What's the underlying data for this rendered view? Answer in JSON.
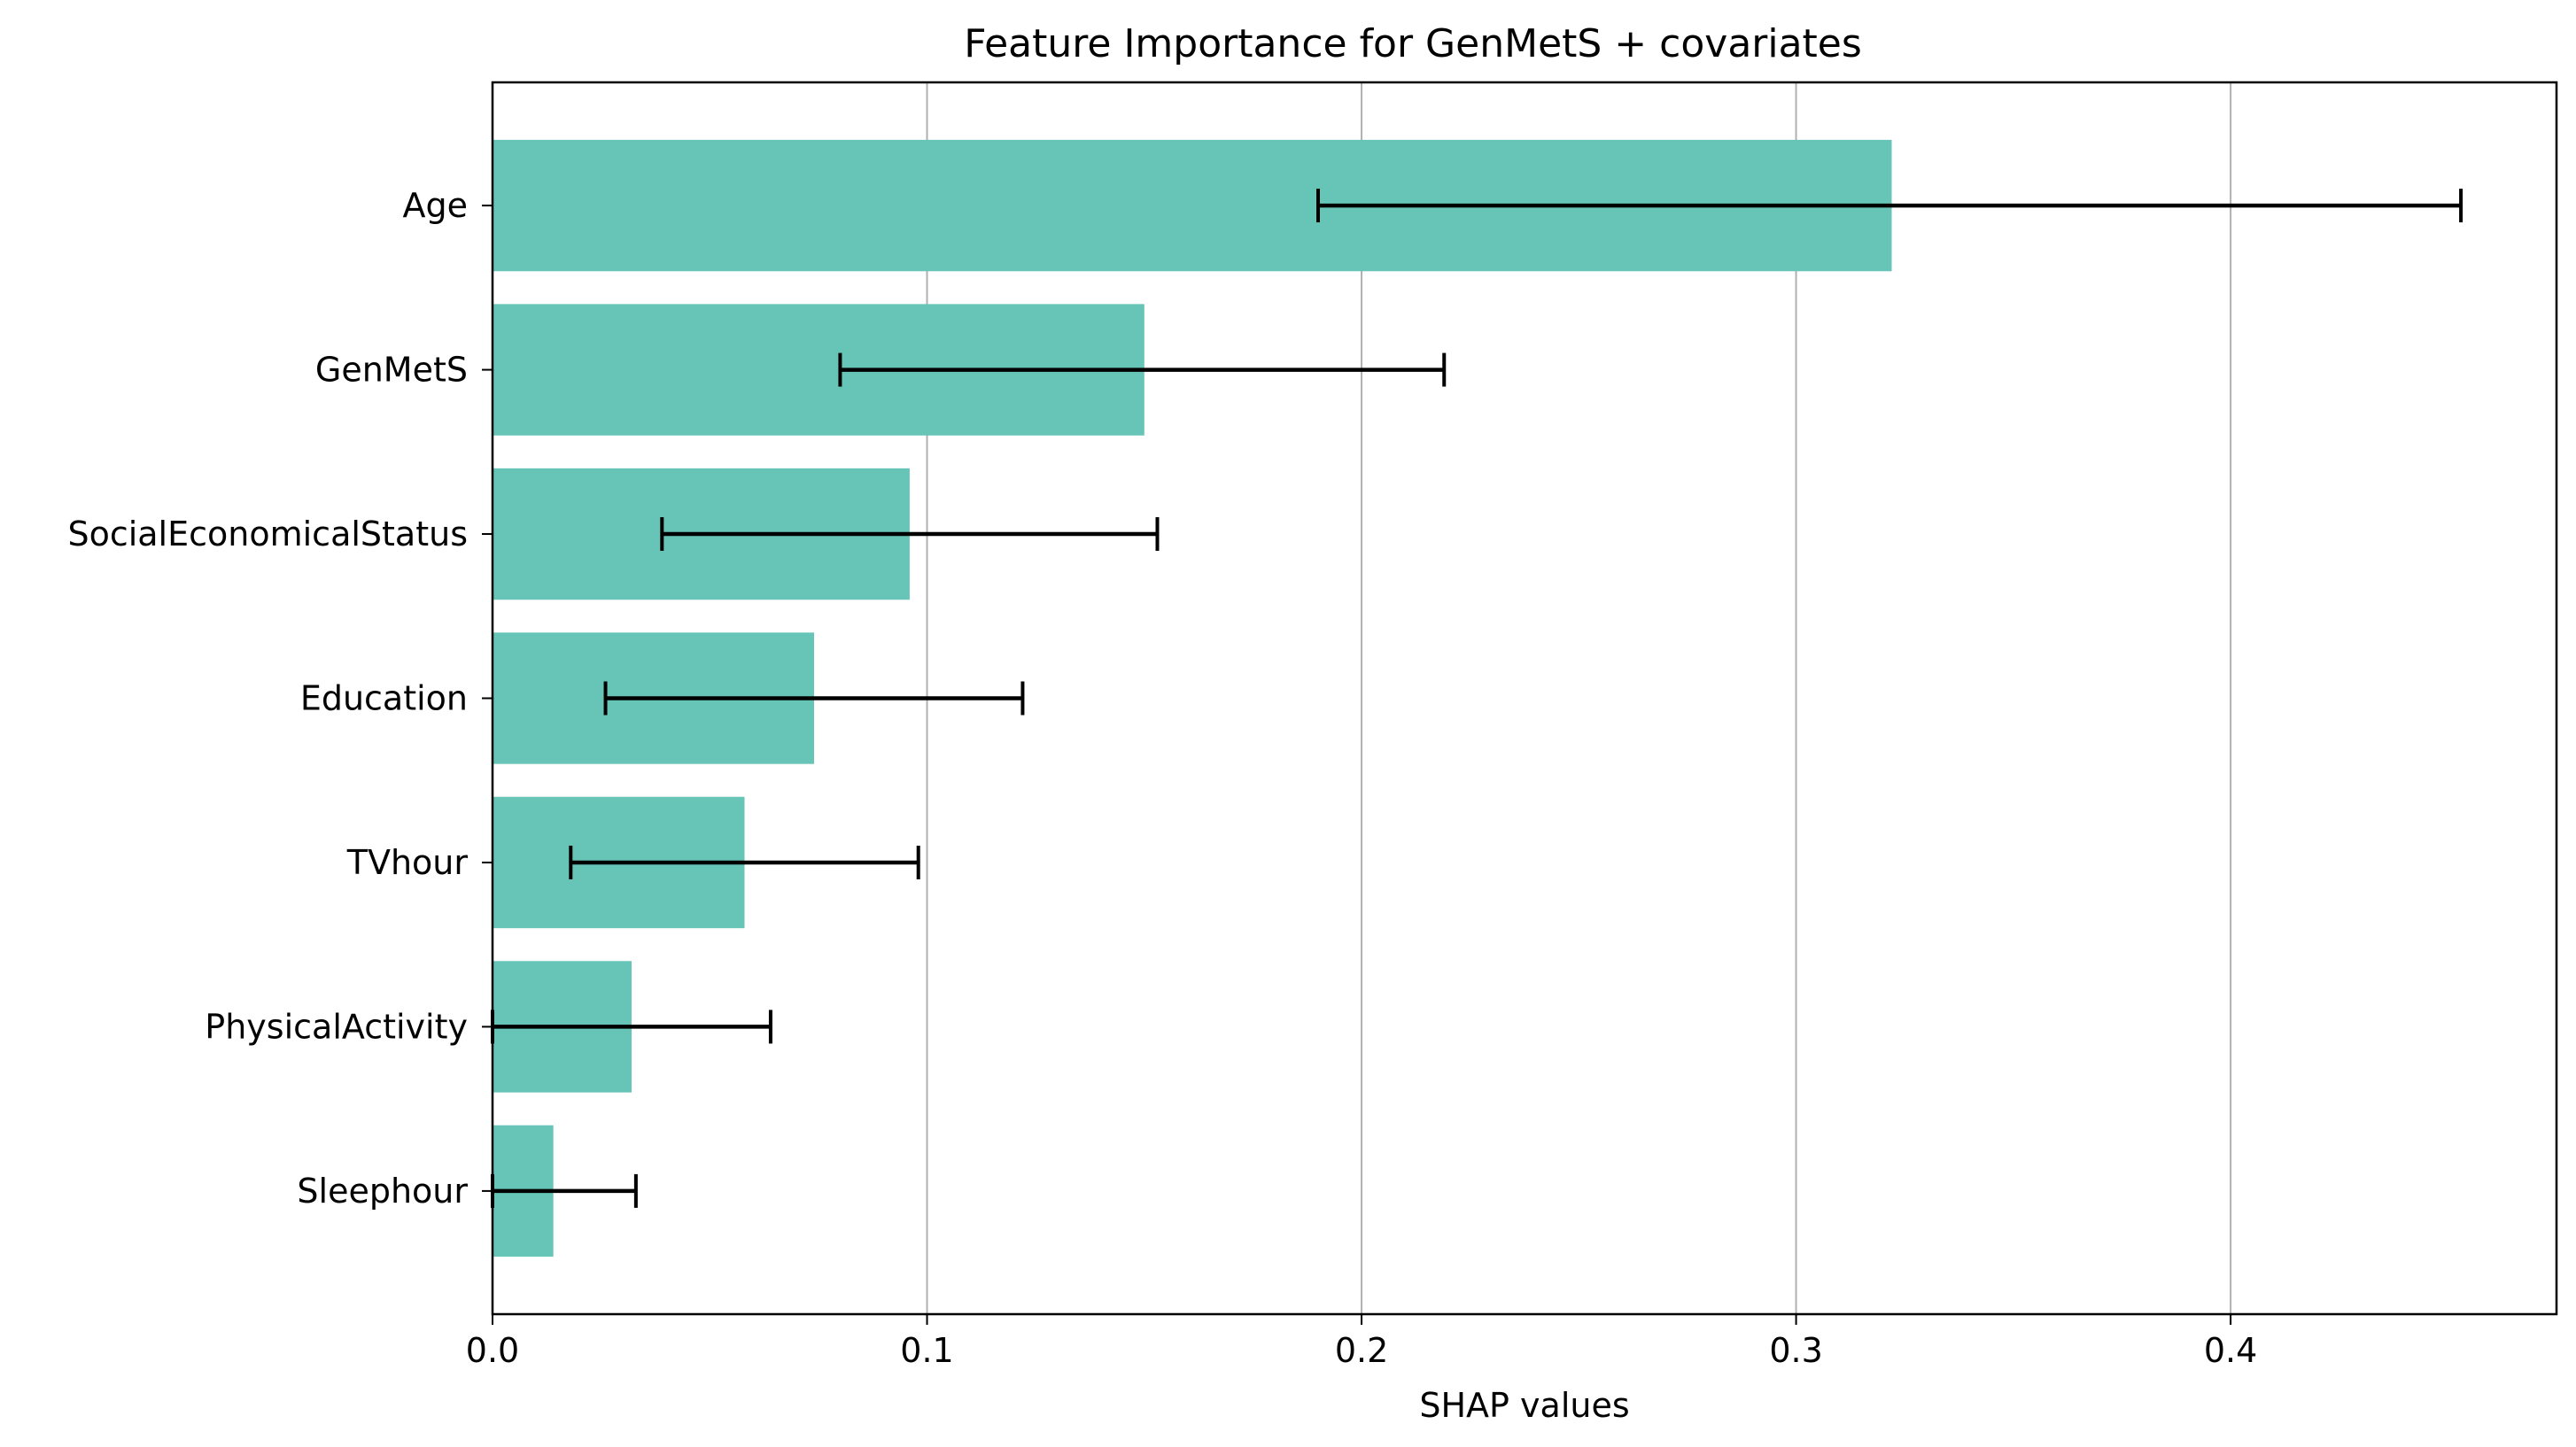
{
  "chart_data": {
    "type": "bar",
    "orientation": "horizontal",
    "title": "Feature Importance for GenMetS + covariates",
    "xlabel": "SHAP values",
    "ylabel": "",
    "xlim": [
      0.0,
      0.475
    ],
    "x_ticks": [
      0.0,
      0.1,
      0.2,
      0.3,
      0.4
    ],
    "x_tick_labels": [
      "0.0",
      "0.1",
      "0.2",
      "0.3",
      "0.4"
    ],
    "grid": "x",
    "bar_color": "#66c5b7",
    "categories": [
      "Age",
      "GenMetS",
      "SocialEconomicalStatus",
      "Education",
      "TVhour",
      "PhysicalActivity",
      "Sleephour"
    ],
    "values": [
      0.322,
      0.15,
      0.096,
      0.074,
      0.058,
      0.032,
      0.014
    ],
    "error_low": [
      0.19,
      0.08,
      0.039,
      0.026,
      0.018,
      0.0,
      0.0
    ],
    "error_high": [
      0.453,
      0.219,
      0.153,
      0.122,
      0.098,
      0.064,
      0.033
    ]
  }
}
